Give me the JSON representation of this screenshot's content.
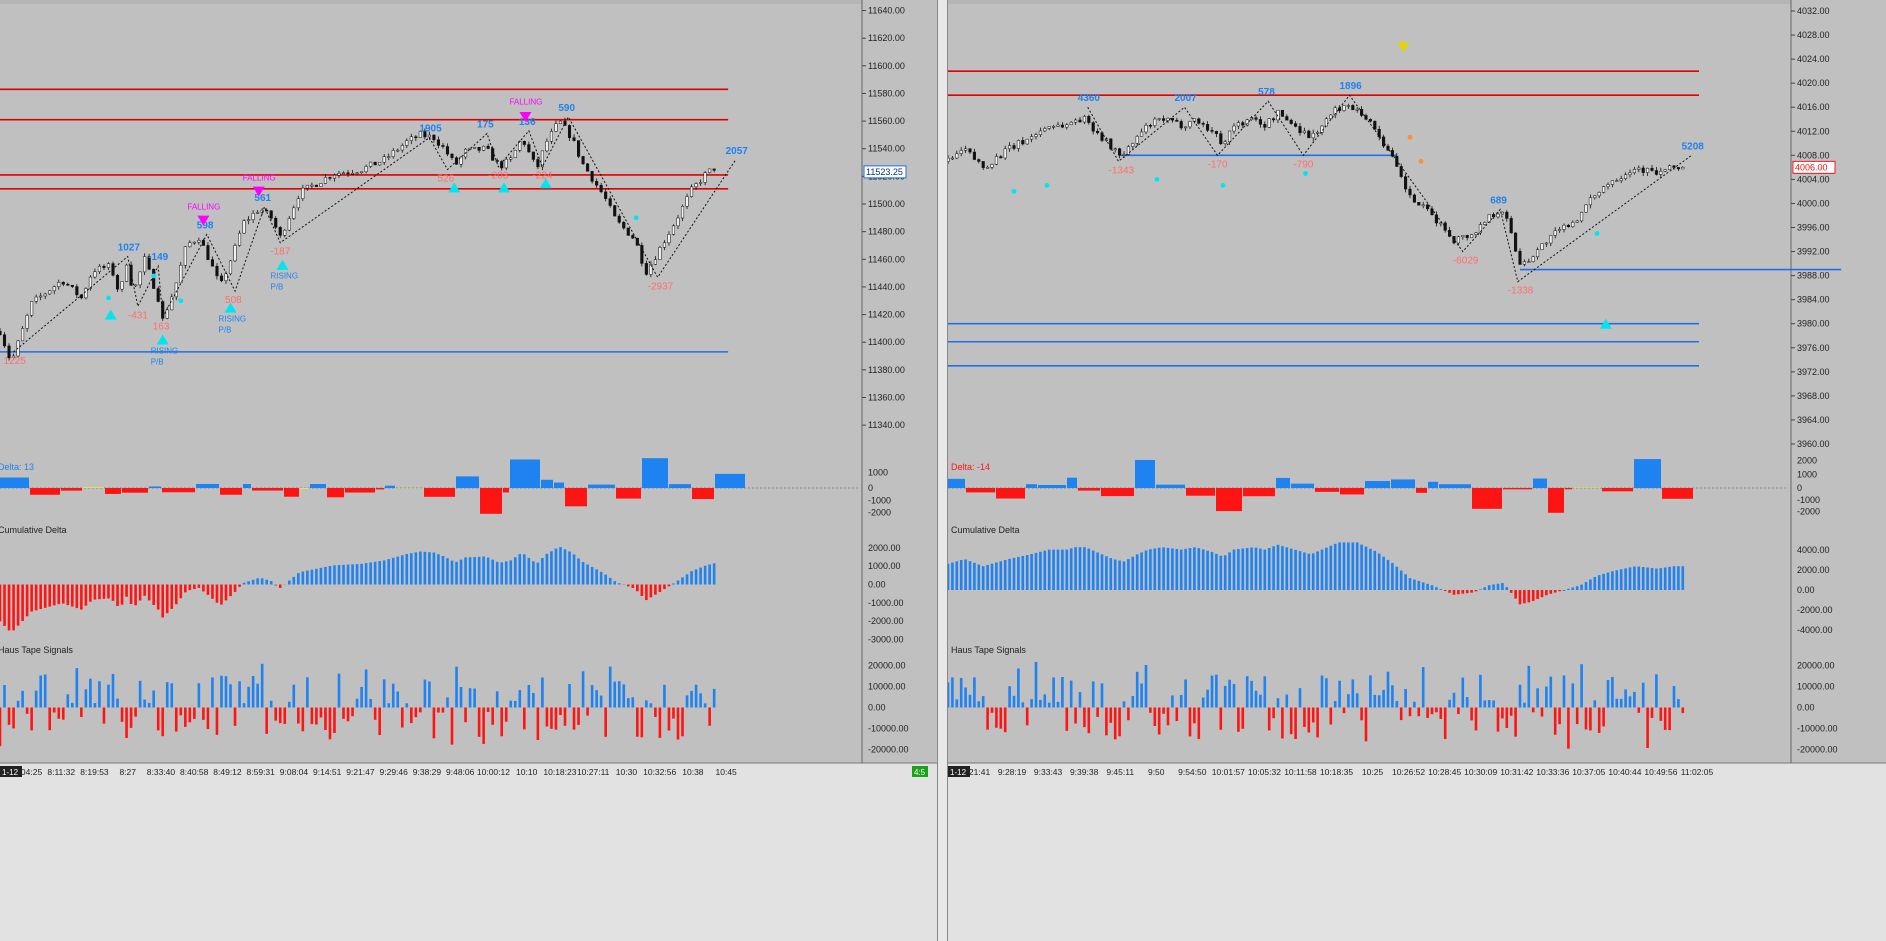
{
  "colors": {
    "bg": "#c0c0c0",
    "up": "#1e82f0",
    "down": "#ff1414",
    "hline_red": "#e00000",
    "hline_blue": "#1e6fe8",
    "swing_high": "#1e82f0",
    "swing_low": "#ff6e6e",
    "signal_up": "#00e5ee",
    "signal_falling": "#ff00ff",
    "pullback": "#1e82f0",
    "yellow": "#ffff00",
    "orange": "#ff8c3c"
  },
  "panels": [
    {
      "id": "left",
      "price_axis": {
        "ticks": [
          "11640.00",
          "11620.00",
          "11600.00",
          "11580.00",
          "11560.00",
          "11540.00",
          "11520.00",
          "11500.00",
          "11480.00",
          "11460.00",
          "11440.00",
          "11420.00",
          "11400.00",
          "11380.00",
          "11360.00",
          "11340.00"
        ],
        "range": [
          11322,
          11644
        ],
        "last_price": "11523.25"
      },
      "price_data": {
        "anchors": [
          [
            0,
            11408
          ],
          [
            10,
            11385
          ],
          [
            28,
            11428
          ],
          [
            55,
            11445
          ],
          [
            72,
            11432
          ],
          [
            82,
            11452
          ],
          [
            98,
            11455
          ],
          [
            106,
            11434
          ],
          [
            112,
            11458
          ],
          [
            118,
            11436
          ],
          [
            128,
            11460
          ],
          [
            140,
            11432
          ],
          [
            144,
            11416
          ],
          [
            155,
            11440
          ],
          [
            165,
            11470
          ],
          [
            176,
            11476
          ],
          [
            185,
            11460
          ],
          [
            195,
            11440
          ],
          [
            208,
            11468
          ],
          [
            215,
            11486
          ],
          [
            230,
            11497
          ],
          [
            240,
            11490
          ],
          [
            248,
            11476
          ],
          [
            265,
            11508
          ],
          [
            295,
            11522
          ],
          [
            320,
            11525
          ],
          [
            340,
            11532
          ],
          [
            360,
            11545
          ],
          [
            372,
            11550
          ],
          [
            384,
            11548
          ],
          [
            393,
            11540
          ],
          [
            403,
            11528
          ],
          [
            412,
            11538
          ],
          [
            430,
            11540
          ],
          [
            442,
            11527
          ],
          [
            452,
            11532
          ],
          [
            462,
            11548
          ],
          [
            468,
            11537
          ],
          [
            475,
            11525
          ],
          [
            483,
            11544
          ],
          [
            495,
            11560
          ],
          [
            506,
            11548
          ],
          [
            515,
            11530
          ],
          [
            535,
            11505
          ],
          [
            545,
            11488
          ],
          [
            560,
            11476
          ],
          [
            566,
            11466
          ],
          [
            571,
            11450
          ],
          [
            582,
            11465
          ],
          [
            598,
            11488
          ],
          [
            612,
            11510
          ],
          [
            625,
            11522
          ],
          [
            632,
            11526
          ]
        ],
        "hlines": [
          {
            "y": 11583,
            "color": "red"
          },
          {
            "y": 11561,
            "color": "red"
          },
          {
            "y": 11521,
            "color": "red"
          },
          {
            "y": 11511,
            "color": "red"
          },
          {
            "y": 11393,
            "color": "blue"
          }
        ],
        "labels": [
          {
            "x": 12,
            "y": 11393,
            "text": "1225",
            "kind": "low"
          },
          {
            "x": 113,
            "y": 11462,
            "text": "1027",
            "kind": "high"
          },
          {
            "x": 122,
            "y": 11426,
            "text": "-431",
            "kind": "low"
          },
          {
            "x": 144,
            "y": 11418,
            "text": "163",
            "kind": "low"
          },
          {
            "x": 140,
            "y": 11455,
            "text": "-149",
            "kind": "high"
          },
          {
            "x": 183,
            "y": 11478,
            "text": "598",
            "kind": "high"
          },
          {
            "x": 208,
            "y": 11437,
            "text": "508",
            "kind": "low"
          },
          {
            "x": 234,
            "y": 11498,
            "text": "561",
            "kind": "high"
          },
          {
            "x": 248,
            "y": 11472,
            "text": "-187",
            "kind": "low"
          },
          {
            "x": 380,
            "y": 11548,
            "text": "1905",
            "kind": "high"
          },
          {
            "x": 396,
            "y": 11525,
            "text": "526",
            "kind": "low"
          },
          {
            "x": 431,
            "y": 11551,
            "text": "175",
            "kind": "high"
          },
          {
            "x": 441,
            "y": 11527,
            "text": "-203",
            "kind": "low"
          },
          {
            "x": 468,
            "y": 11553,
            "text": "136",
            "kind": "high"
          },
          {
            "x": 480,
            "y": 11527,
            "text": "-224",
            "kind": "low"
          },
          {
            "x": 503,
            "y": 11563,
            "text": "590",
            "kind": "high"
          },
          {
            "x": 582,
            "y": 11447,
            "text": "-2937",
            "kind": "low"
          },
          {
            "x": 651,
            "y": 11532,
            "text": "2057",
            "kind": "high"
          }
        ],
        "falling_labels": [
          {
            "x": 180,
            "y": 11496,
            "text": "FALLING"
          },
          {
            "x": 229,
            "y": 11517,
            "text": "FALLING"
          },
          {
            "x": 465,
            "y": 11572,
            "text": "FALLING"
          }
        ],
        "falling_markers": [
          [
            180,
            11488
          ],
          [
            229,
            11509
          ],
          [
            465,
            11563
          ]
        ],
        "rising_markers": [
          [
            98,
            11420
          ],
          [
            144,
            11402
          ],
          [
            204,
            11425
          ],
          [
            250,
            11456
          ],
          [
            402,
            11512
          ],
          [
            446,
            11512
          ],
          [
            483,
            11515
          ]
        ],
        "rising_labels": [
          {
            "x": 144,
            "y": 11392,
            "text": "RISING"
          },
          {
            "x": 144,
            "y": 11384,
            "text": "P/B"
          },
          {
            "x": 204,
            "y": 11415,
            "text": "RISING"
          },
          {
            "x": 204,
            "y": 11407,
            "text": "P/B"
          },
          {
            "x": 250,
            "y": 11446,
            "text": "RISING"
          },
          {
            "x": 250,
            "y": 11438,
            "text": "P/B"
          }
        ],
        "small_dots": [
          [
            96,
            11432
          ],
          [
            136,
            11448
          ],
          [
            160,
            11430
          ],
          [
            563,
            11490
          ]
        ]
      },
      "delta": {
        "label": "Delta: 13",
        "axis_ticks": [
          "1000",
          "0",
          "-1000",
          "-2000"
        ],
        "range": [
          -2600,
          2100
        ]
      },
      "cum_delta": {
        "label": "Cumulative Delta",
        "axis_ticks": [
          "2000.00",
          "1000.00",
          "0.00",
          "-1000.00",
          "-2000.00",
          "-3000.00"
        ],
        "range": [
          -3300,
          2700
        ]
      },
      "tape": {
        "label": "Haus Tape Signals",
        "axis_ticks": [
          "20000.00",
          "10000.00",
          "0.00",
          "-10000.00",
          "-20000.00"
        ],
        "range": [
          -25000,
          25000
        ]
      },
      "time_axis": [
        "8:04:25",
        "8:11:32",
        "8:19:53",
        "8:27",
        "8:33:40",
        "8:40:58",
        "8:49:12",
        "8:59:31",
        "9:08:04",
        "9:14:51",
        "9:21:47",
        "9:29:46",
        "9:38:29",
        "9:48:06",
        "10:00:12",
        "10:10",
        "10:18:23",
        "10:27:11",
        "10:30",
        "10:32:56",
        "10:38",
        "10:45"
      ],
      "corner_left": "1-12",
      "corner_right": "4:5"
    },
    {
      "id": "right",
      "price_axis": {
        "ticks": [
          "4032.00",
          "4028.00",
          "4024.00",
          "4020.00",
          "4016.00",
          "4012.00",
          "4008.00",
          "4004.00",
          "4000.00",
          "3996.00",
          "3992.00",
          "3988.00",
          "3984.00",
          "3980.00",
          "3976.00",
          "3972.00",
          "3968.00",
          "3964.00",
          "3960.00"
        ],
        "range": [
          3959,
          4033
        ],
        "last_price": "4006.00"
      },
      "price_data": {
        "anchors": [
          [
            0,
            4007
          ],
          [
            15,
            4009
          ],
          [
            32,
            4006
          ],
          [
            55,
            4009
          ],
          [
            75,
            4011
          ],
          [
            92,
            4013
          ],
          [
            108,
            4013
          ],
          [
            116,
            4014
          ],
          [
            125,
            4014
          ],
          [
            135,
            4012
          ],
          [
            150,
            4009
          ],
          [
            160,
            4008
          ],
          [
            172,
            4011
          ],
          [
            182,
            4013
          ],
          [
            195,
            4014
          ],
          [
            212,
            4013
          ],
          [
            225,
            4014
          ],
          [
            240,
            4012
          ],
          [
            250,
            4010
          ],
          [
            260,
            4013
          ],
          [
            278,
            4014
          ],
          [
            288,
            4013
          ],
          [
            300,
            4015
          ],
          [
            315,
            4013
          ],
          [
            330,
            4011
          ],
          [
            345,
            4014
          ],
          [
            355,
            4016
          ],
          [
            372,
            4016
          ],
          [
            390,
            4012
          ],
          [
            405,
            4007
          ],
          [
            420,
            4001
          ],
          [
            440,
            3998
          ],
          [
            460,
            3994
          ],
          [
            478,
            3995
          ],
          [
            492,
            3998
          ],
          [
            505,
            3999
          ],
          [
            520,
            3990
          ],
          [
            530,
            3991
          ],
          [
            545,
            3994
          ],
          [
            560,
            3996
          ],
          [
            575,
            3998
          ],
          [
            590,
            4002
          ],
          [
            605,
            4004
          ],
          [
            625,
            4006
          ],
          [
            645,
            4005
          ],
          [
            660,
            4006
          ],
          [
            670,
            4006
          ]
        ],
        "hlines": [
          {
            "y": 4022,
            "color": "red"
          },
          {
            "y": 4018,
            "color": "red"
          },
          {
            "y": 4008,
            "color": "blue",
            "x0": 155,
            "x1": 408
          },
          {
            "y": 3989,
            "color": "blue",
            "x0": 520,
            "x1": 812
          },
          {
            "y": 3980,
            "color": "blue"
          },
          {
            "y": 3977,
            "color": "blue"
          },
          {
            "y": 3973,
            "color": "blue"
          }
        ],
        "labels": [
          {
            "x": 127,
            "y": 4016,
            "text": "4360",
            "kind": "high"
          },
          {
            "x": 155,
            "y": 4007,
            "text": "-1343",
            "kind": "low"
          },
          {
            "x": 215,
            "y": 4016,
            "text": "2007",
            "kind": "high"
          },
          {
            "x": 245,
            "y": 4008,
            "text": "-170",
            "kind": "low"
          },
          {
            "x": 291,
            "y": 4017,
            "text": "578",
            "kind": "high"
          },
          {
            "x": 323,
            "y": 4008,
            "text": "-790",
            "kind": "low"
          },
          {
            "x": 365,
            "y": 4018,
            "text": "1896",
            "kind": "high"
          },
          {
            "x": 468,
            "y": 3992,
            "text": "-6029",
            "kind": "low"
          },
          {
            "x": 502,
            "y": 3999,
            "text": "689",
            "kind": "high"
          },
          {
            "x": 518,
            "y": 3987,
            "text": "-1338",
            "kind": "low"
          },
          {
            "x": 676,
            "y": 4008,
            "text": "5208",
            "kind": "high"
          }
        ],
        "falling_labels": [],
        "falling_markers": [],
        "yellow_markers": [
          [
            414,
            4026
          ]
        ],
        "rising_markers": [
          [
            598,
            3980
          ]
        ],
        "rising_labels": [],
        "small_dots": [
          [
            60,
            4002
          ],
          [
            90,
            4003
          ],
          [
            190,
            4004
          ],
          [
            250,
            4003
          ],
          [
            325,
            4005
          ],
          [
            420,
            4011
          ],
          [
            430,
            4007
          ],
          [
            590,
            3995
          ]
        ]
      },
      "delta": {
        "label": "Delta: -14",
        "axis_ticks": [
          "2000",
          "1000",
          "0",
          "-1000",
          "-2000"
        ],
        "range": [
          -2700,
          2400
        ]
      },
      "cum_delta": {
        "label": "Cumulative Delta",
        "axis_ticks": [
          "4000.00",
          "2000.00",
          "0.00",
          "-2000.00",
          "-4000.00"
        ],
        "range": [
          -5500,
          5500
        ]
      },
      "tape": {
        "label": "Haus Tape Signals",
        "axis_ticks": [
          "20000.00",
          "10000.00",
          "0.00",
          "-10000.00",
          "-20000.00"
        ],
        "range": [
          -25000,
          25000
        ]
      },
      "time_axis": [
        "9:21:41",
        "9:28:19",
        "9:33:43",
        "9:39:38",
        "9:45:11",
        "9:50",
        "9:54:50",
        "10:01:57",
        "10:05:32",
        "10:11:58",
        "10:18:35",
        "10:25",
        "10:26:52",
        "10:28:45",
        "10:30:09",
        "10:31:42",
        "10:33:36",
        "10:37:05",
        "10:40:44",
        "10:49:56",
        "11:02:05"
      ],
      "corner_left": "1-12",
      "corner_right": ""
    }
  ]
}
